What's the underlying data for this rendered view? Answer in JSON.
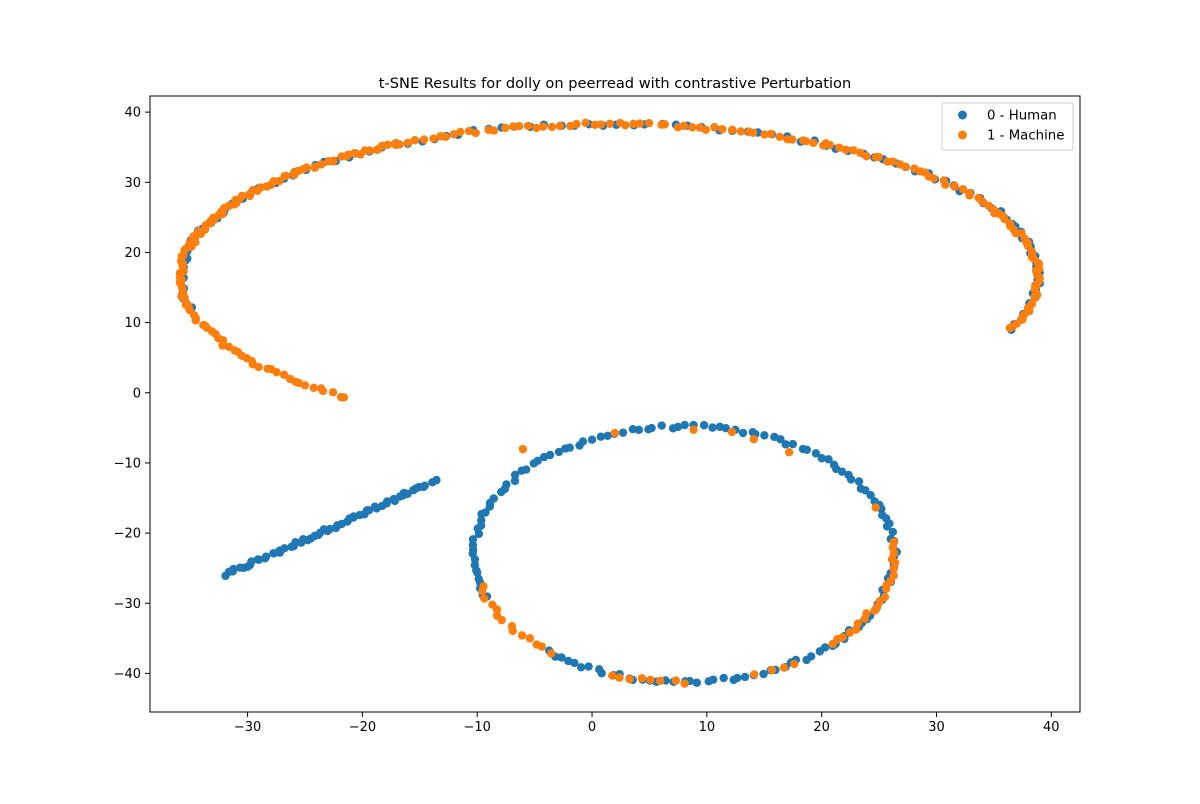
{
  "chart_data": {
    "type": "scatter",
    "title": "t-SNE Results for dolly on peerread with contrastive Perturbation",
    "xlabel": "",
    "ylabel": "",
    "xlim": [
      -38.5,
      42.5
    ],
    "ylim": [
      -45.5,
      42.3
    ],
    "xticks": [
      -30,
      -20,
      -10,
      0,
      10,
      20,
      30,
      40
    ],
    "yticks": [
      -40,
      -30,
      -20,
      -10,
      0,
      10,
      20,
      30,
      40
    ],
    "grid": false,
    "legend_position": "upper right",
    "series": [
      {
        "name": "0 - Human",
        "color": "#1f77b4",
        "segments": [
          {
            "kind": "line",
            "from": [
              -32,
              -26
            ],
            "to": [
              -13.7,
              -12.7
            ],
            "count": 60
          },
          {
            "kind": "arc",
            "cx": 8,
            "cy": -23,
            "rx": 18.3,
            "ry": 18.2,
            "start": 200,
            "end": -130,
            "count": 150
          },
          {
            "kind": "arc",
            "cx": 1.5,
            "cy": 16.5,
            "rx": 37.3,
            "ry": 21.8,
            "start": 192,
            "end": -20,
            "count": 110
          }
        ]
      },
      {
        "name": "1 - Machine",
        "color": "#ff7f0e",
        "segments": [
          {
            "kind": "arc",
            "cx": 1.5,
            "cy": 16.5,
            "rx": 37.3,
            "ry": 21.8,
            "start": 232,
            "end": 168,
            "count": 55
          },
          {
            "kind": "arc",
            "cx": 1.5,
            "cy": 16.5,
            "rx": 37.3,
            "ry": 21.8,
            "start": 168,
            "end": 120,
            "count": 60
          },
          {
            "kind": "arc",
            "cx": 1.5,
            "cy": 16.5,
            "rx": 37.3,
            "ry": 21.8,
            "start": 120,
            "end": 60,
            "count": 55
          },
          {
            "kind": "arc",
            "cx": 1.5,
            "cy": 16.5,
            "rx": 37.3,
            "ry": 21.8,
            "start": 60,
            "end": -20,
            "count": 70
          },
          {
            "kind": "arc",
            "cx": 8,
            "cy": -23,
            "rx": 18.3,
            "ry": 18.2,
            "start": -130,
            "end": -165,
            "count": 14
          },
          {
            "kind": "arc",
            "cx": 8,
            "cy": -23,
            "rx": 18.3,
            "ry": 18.2,
            "start": -110,
            "end": -90,
            "count": 8
          },
          {
            "kind": "arc",
            "cx": 8,
            "cy": -23,
            "rx": 18.3,
            "ry": 18.2,
            "start": -70,
            "end": -58,
            "count": 4
          },
          {
            "kind": "arc",
            "cx": 8,
            "cy": -23,
            "rx": 18.3,
            "ry": 18.2,
            "start": -45,
            "end": 5,
            "count": 22
          },
          {
            "kind": "points",
            "points": [
              [
                2,
                -5.6
              ],
              [
                -6,
                -7.8
              ],
              [
                12,
                -5.8
              ],
              [
                14,
                -6.5
              ],
              [
                17,
                -8.3
              ],
              [
                9,
                -5.3
              ],
              [
                24.5,
                -16.5
              ]
            ]
          }
        ]
      }
    ]
  }
}
